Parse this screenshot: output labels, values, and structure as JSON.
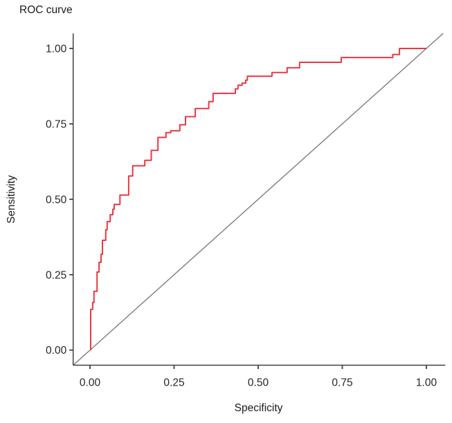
{
  "title": "ROC curve",
  "chart": {
    "x_label": "Specificity",
    "y_label": "Sensitivity"
  },
  "colors": {
    "roc_curve": "#e83940",
    "reference_line": "#7d7d7d",
    "axis": "#404040",
    "tick_text": "#262626",
    "title_text": "#1a1a1a",
    "background": "#ffffff"
  },
  "chart_data": {
    "type": "line",
    "title": "ROC curve",
    "xlabel": "Specificity",
    "ylabel": "Sensitivity",
    "xlim": [
      -0.05,
      1.05
    ],
    "ylim": [
      -0.05,
      1.05
    ],
    "grid": false,
    "legend": "none",
    "x_ticks": {
      "values": [
        0,
        0.25,
        0.5,
        0.75,
        1.0
      ],
      "labels": [
        "0.00",
        "0.25",
        "0.50",
        "0.75",
        "1.00"
      ]
    },
    "y_ticks": {
      "values": [
        0,
        0.25,
        0.5,
        0.75,
        1.0
      ],
      "labels": [
        "0.00",
        "0.25",
        "0.50",
        "0.75",
        "1.00"
      ]
    },
    "series": [
      {
        "name": "ROC curve",
        "color": "#e83940",
        "width": 2,
        "style": "step",
        "points": [
          [
            0.002,
            0.0
          ],
          [
            0.002,
            0.135
          ],
          [
            0.008,
            0.135
          ],
          [
            0.008,
            0.158
          ],
          [
            0.012,
            0.158
          ],
          [
            0.012,
            0.195
          ],
          [
            0.021,
            0.195
          ],
          [
            0.021,
            0.259
          ],
          [
            0.027,
            0.259
          ],
          [
            0.027,
            0.291
          ],
          [
            0.033,
            0.291
          ],
          [
            0.033,
            0.318
          ],
          [
            0.037,
            0.318
          ],
          [
            0.037,
            0.364
          ],
          [
            0.047,
            0.364
          ],
          [
            0.047,
            0.399
          ],
          [
            0.051,
            0.399
          ],
          [
            0.051,
            0.426
          ],
          [
            0.06,
            0.426
          ],
          [
            0.06,
            0.449
          ],
          [
            0.068,
            0.449
          ],
          [
            0.068,
            0.467
          ],
          [
            0.072,
            0.467
          ],
          [
            0.072,
            0.483
          ],
          [
            0.089,
            0.483
          ],
          [
            0.089,
            0.514
          ],
          [
            0.115,
            0.514
          ],
          [
            0.115,
            0.577
          ],
          [
            0.127,
            0.577
          ],
          [
            0.127,
            0.611
          ],
          [
            0.163,
            0.611
          ],
          [
            0.163,
            0.629
          ],
          [
            0.182,
            0.629
          ],
          [
            0.182,
            0.662
          ],
          [
            0.202,
            0.662
          ],
          [
            0.202,
            0.705
          ],
          [
            0.226,
            0.705
          ],
          [
            0.226,
            0.721
          ],
          [
            0.24,
            0.721
          ],
          [
            0.24,
            0.727
          ],
          [
            0.267,
            0.727
          ],
          [
            0.267,
            0.747
          ],
          [
            0.284,
            0.747
          ],
          [
            0.284,
            0.774
          ],
          [
            0.313,
            0.774
          ],
          [
            0.313,
            0.801
          ],
          [
            0.353,
            0.801
          ],
          [
            0.353,
            0.824
          ],
          [
            0.366,
            0.824
          ],
          [
            0.366,
            0.851
          ],
          [
            0.432,
            0.851
          ],
          [
            0.432,
            0.866
          ],
          [
            0.44,
            0.866
          ],
          [
            0.44,
            0.878
          ],
          [
            0.452,
            0.878
          ],
          [
            0.452,
            0.885
          ],
          [
            0.463,
            0.885
          ],
          [
            0.463,
            0.895
          ],
          [
            0.468,
            0.895
          ],
          [
            0.468,
            0.908
          ],
          [
            0.477,
            0.908
          ],
          [
            0.541,
            0.908
          ],
          [
            0.541,
            0.92
          ],
          [
            0.586,
            0.92
          ],
          [
            0.586,
            0.936
          ],
          [
            0.623,
            0.936
          ],
          [
            0.623,
            0.954
          ],
          [
            0.747,
            0.954
          ],
          [
            0.747,
            0.97
          ],
          [
            0.9,
            0.97
          ],
          [
            0.9,
            0.98
          ],
          [
            0.92,
            0.98
          ],
          [
            0.92,
            1.0
          ],
          [
            1.0,
            1.0
          ]
        ]
      },
      {
        "name": "chance diagonal",
        "color": "#7d7d7d",
        "width": 1.4,
        "style": "line",
        "points": [
          [
            -0.05,
            -0.05
          ],
          [
            1.05,
            1.05
          ]
        ]
      }
    ]
  }
}
